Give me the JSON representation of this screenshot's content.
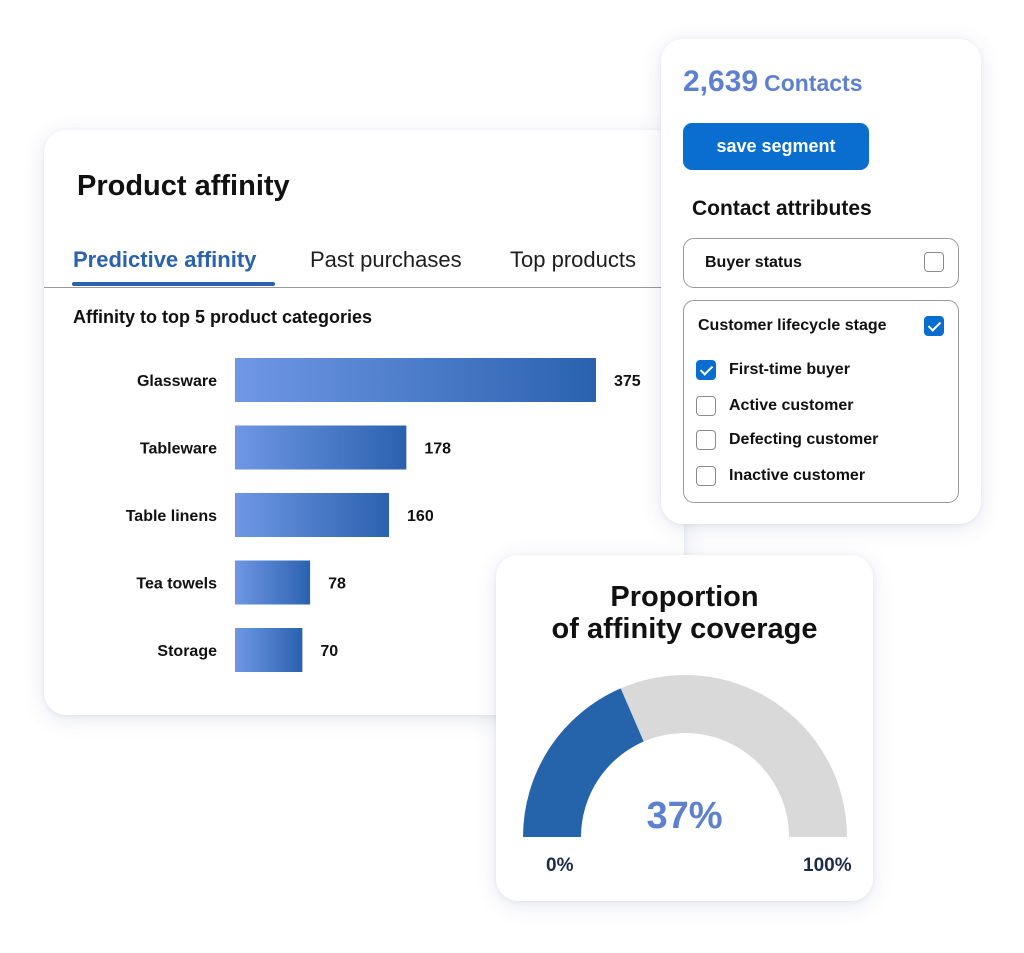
{
  "affinity_card": {
    "title": "Product affinity",
    "tabs": [
      {
        "label": "Predictive affinity",
        "active": true
      },
      {
        "label": "Past purchases",
        "active": false
      },
      {
        "label": "Top products",
        "active": false
      }
    ],
    "chart_subtitle": "Affinity to top 5 product categories"
  },
  "chart_data": [
    {
      "type": "bar",
      "orientation": "horizontal",
      "title": "Affinity to top 5 product categories",
      "categories": [
        "Glassware",
        "Tableware",
        "Table linens",
        "Tea towels",
        "Storage"
      ],
      "values": [
        375,
        178,
        160,
        78,
        70
      ],
      "data_labels": [
        "375",
        "178",
        "160",
        "78",
        "70"
      ],
      "xlim": [
        0,
        375
      ],
      "grid": false,
      "colors": {
        "bar_start": "#6f97e4",
        "bar_end": "#2a62b0"
      }
    },
    {
      "type": "pie",
      "style": "semi-donut gauge",
      "title": "Proportion of affinity coverage",
      "value": 37,
      "value_label": "37%",
      "min_label": "0%",
      "max_label": "100%",
      "colors": {
        "filled": "#2563ab",
        "remaining": "#d9d9d9",
        "value_text": "#5e80d0"
      }
    }
  ],
  "contacts_card": {
    "count": "2,639",
    "count_word": "Contacts",
    "save_button": "save segment",
    "attributes_heading": "Contact attributes",
    "buyer_status": {
      "label": "Buyer status",
      "checked": false
    },
    "lifecycle": {
      "label": "Customer lifecycle stage",
      "checked": true,
      "items": [
        {
          "label": "First-time buyer",
          "checked": true
        },
        {
          "label": "Active customer",
          "checked": false
        },
        {
          "label": "Defecting customer",
          "checked": false
        },
        {
          "label": "Inactive customer",
          "checked": false
        }
      ]
    }
  },
  "gauge_card": {
    "title_line1": "Proportion",
    "title_line2": "of affinity coverage",
    "value_label": "37%",
    "min_label": "0%",
    "max_label": "100%"
  },
  "colors": {
    "accent": "#0a6ed1",
    "tab_active": "#2a62b0",
    "count_text": "#5e80d0"
  },
  "icons": [
    "checkbox-checked-icon",
    "checkbox-empty-icon"
  ]
}
